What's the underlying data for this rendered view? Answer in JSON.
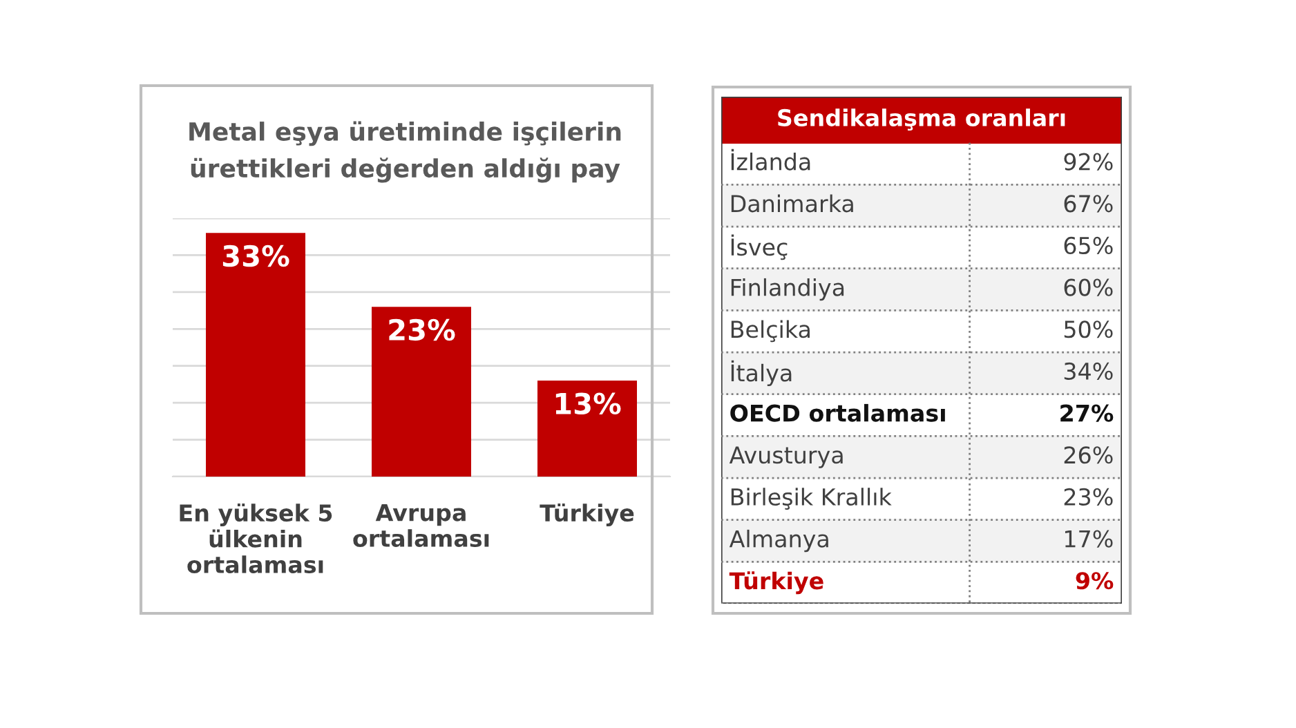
{
  "chart_data": [
    {
      "type": "bar",
      "title": "Metal eşya üretiminde işçilerin\nürettikleri değerden aldığı pay",
      "categories": [
        "En yüksek 5\nülkenin\nortalaması",
        "Avrupa\nortalaması",
        "Türkiye"
      ],
      "values": [
        33,
        23,
        13
      ],
      "value_labels": [
        "33%",
        "23%",
        "13%"
      ],
      "color": "#c00000",
      "ylim": [
        0,
        35
      ],
      "yticks": [
        {
          "value": 0,
          "label": null
        },
        {
          "value": 5,
          "label": null
        },
        {
          "value": 10,
          "label": null
        },
        {
          "value": 15,
          "label": null
        },
        {
          "value": 20,
          "label": null
        },
        {
          "value": 25,
          "label": null
        },
        {
          "value": 30,
          "label": null
        },
        {
          "value": 35,
          "label": null
        }
      ],
      "tick_labels": "x",
      "grid": "y"
    },
    {
      "type": "other",
      "title": "Sendikalaşma oranları",
      "categories": [
        "İzlanda",
        "Danimarka",
        "İsveç",
        "Finlandiya",
        "Belçika",
        "İtalya",
        "OECD ortalaması",
        "Avusturya",
        "Birleşik Krallık",
        "Almanya",
        "Türkiye"
      ],
      "value_labels": [
        "92%",
        "67%",
        "65%",
        "60%",
        "50%",
        "34%",
        "27%",
        "26%",
        "23%",
        "17%",
        "9%"
      ],
      "colors": [
        "#404040",
        "#404040",
        "#404040",
        "#404040",
        "#404040",
        "#404040",
        "#111111",
        "#404040",
        "#404040",
        "#404040",
        "#c00000"
      ],
      "color": "#c00000"
    }
  ]
}
